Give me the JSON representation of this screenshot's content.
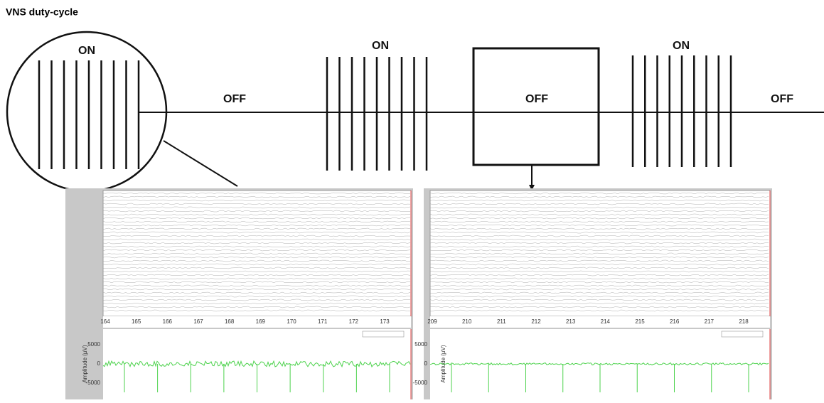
{
  "title": "VNS duty-cycle",
  "states": [
    {
      "label": "ON"
    },
    {
      "label": "OFF"
    },
    {
      "label": "ON"
    },
    {
      "label": "OFF"
    },
    {
      "label": "ON"
    },
    {
      "label": "OFF"
    }
  ],
  "panels": [
    {
      "xticks": [
        164,
        165,
        166,
        167,
        168,
        169,
        170,
        171,
        172,
        173
      ],
      "ylabel": "Amplitude (µV)",
      "yticks": [
        "5000",
        "0",
        "-5000"
      ]
    },
    {
      "xticks": [
        209,
        210,
        211,
        212,
        213,
        214,
        215,
        216,
        217,
        218
      ],
      "ylabel": "Amplitude (µV)",
      "yticks": [
        "5000",
        "0",
        "-5000"
      ]
    }
  ]
}
